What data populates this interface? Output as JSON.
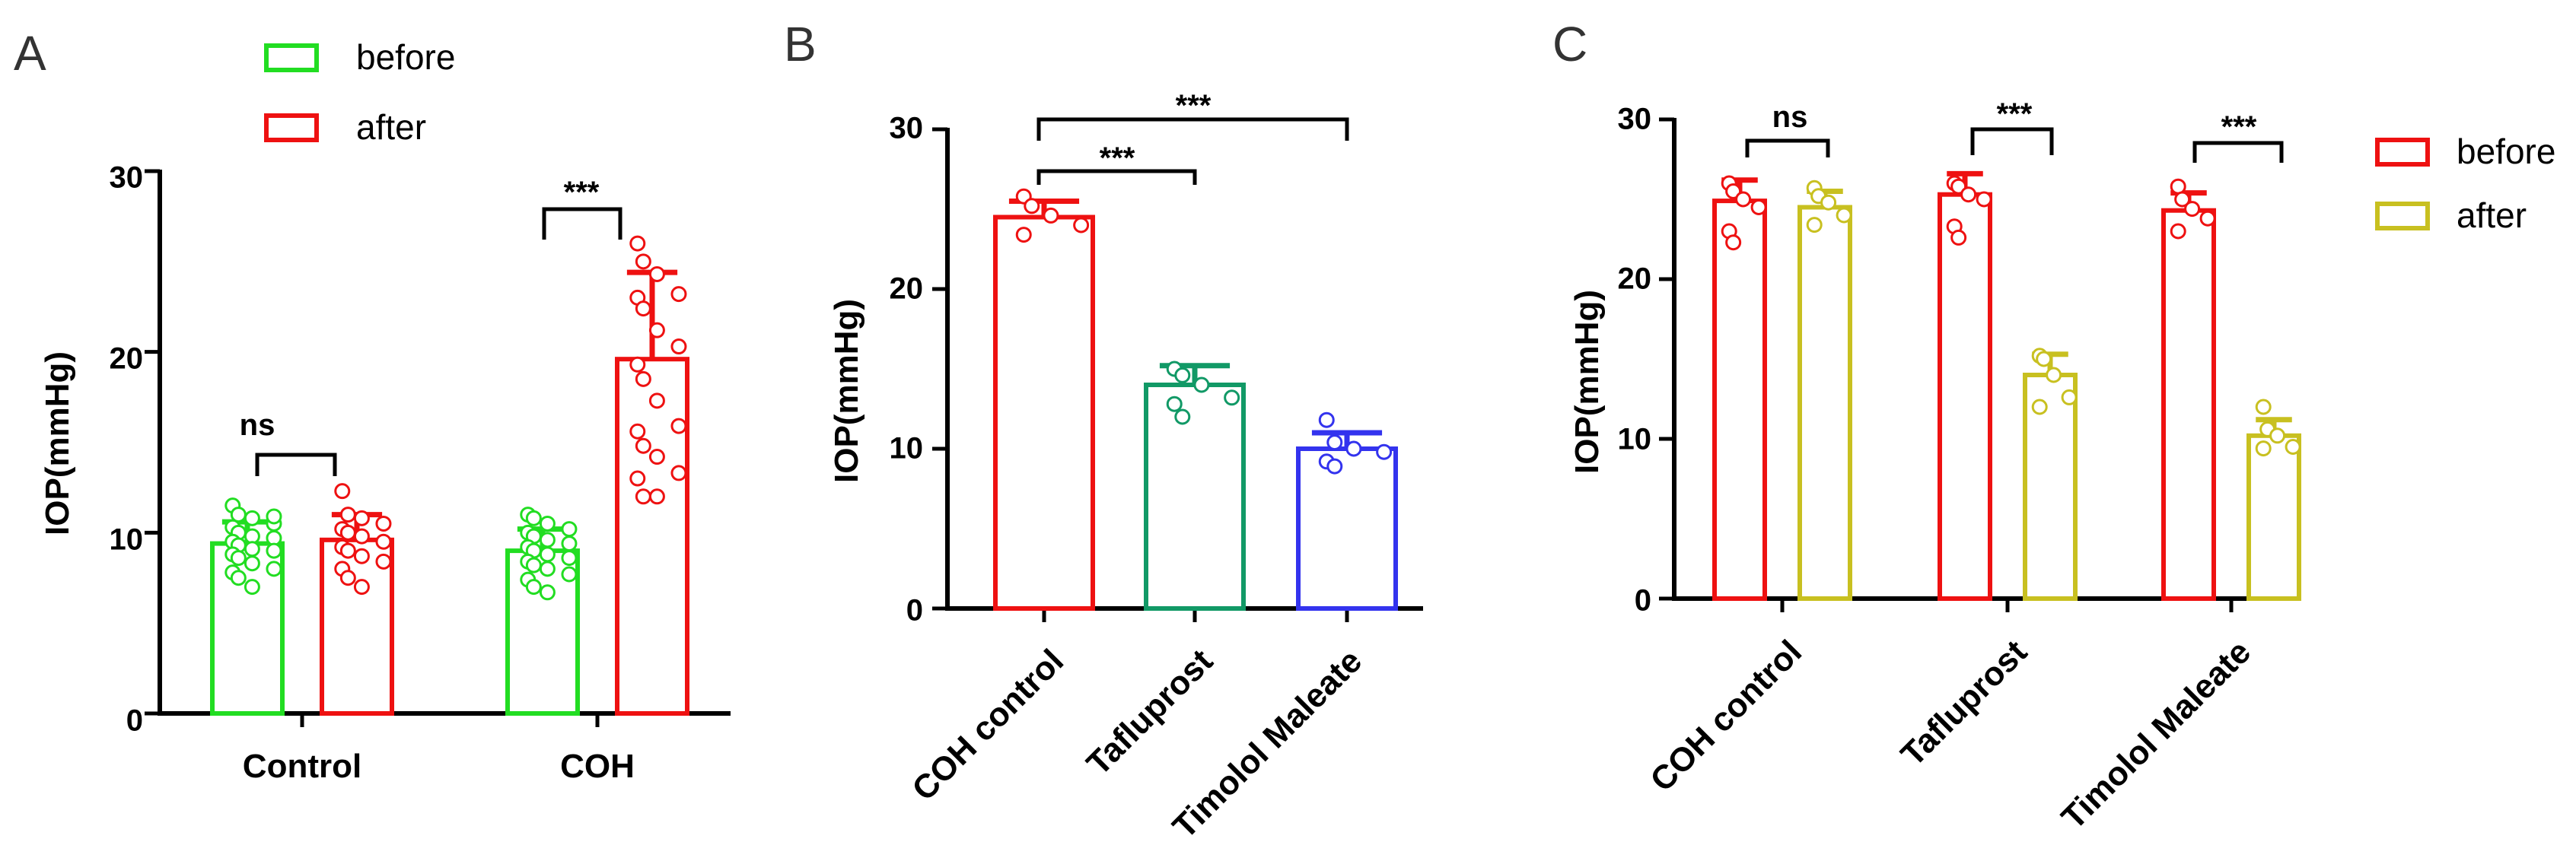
{
  "colors": {
    "green": "#22dd22",
    "red": "#ee1111",
    "teal": "#119966",
    "blue": "#3333ee",
    "olive": "#c8c020",
    "axis": "#000000"
  },
  "chart_data": [
    {
      "panel": "A",
      "type": "bar",
      "ylabel": "IOP(mmHg)",
      "ylim": [
        0,
        30
      ],
      "yticks": [
        "0",
        "10",
        "20",
        "30"
      ],
      "categories": [
        "Control",
        "COH"
      ],
      "legend": {
        "position": "top",
        "entries": [
          "before",
          "after"
        ]
      },
      "series": [
        {
          "name": "before",
          "values": [
            9.4,
            9.0
          ],
          "errors": [
            1.2,
            1.2
          ],
          "points": [
            [
              11.5,
              11.0,
              10.8,
              10.5,
              10.3,
              10.0,
              9.8,
              9.7,
              9.5,
              9.3,
              9.1,
              9.0,
              8.8,
              8.6,
              8.3,
              8.0,
              7.8,
              7.5,
              7.0,
              10.9
            ],
            [
              11.0,
              10.8,
              10.5,
              10.2,
              10.0,
              9.8,
              9.6,
              9.4,
              9.2,
              9.0,
              8.8,
              8.6,
              8.4,
              8.2,
              8.0,
              7.7,
              7.4,
              7.0,
              6.7
            ]
          ]
        },
        {
          "name": "after",
          "values": [
            9.6,
            19.6
          ],
          "errors": [
            1.4,
            4.8
          ],
          "points": [
            [
              12.3,
              11.0,
              10.8,
              10.5,
              10.2,
              10.0,
              9.8,
              9.5,
              9.2,
              9.0,
              8.7,
              8.4,
              8.0,
              7.5,
              7.0
            ],
            [
              26.0,
              25.0,
              24.3,
              23.2,
              23.0,
              22.4,
              21.2,
              20.3,
              19.3,
              18.5,
              17.3,
              15.9,
              15.6,
              14.8,
              14.2,
              13.3,
              13.0,
              12.0,
              12.0
            ]
          ]
        }
      ],
      "annotations": [
        {
          "label": "ns",
          "category": "Control"
        },
        {
          "label": "***",
          "category": "COH"
        }
      ]
    },
    {
      "panel": "B",
      "type": "bar",
      "ylabel": "IOP(mmHg)",
      "ylim": [
        0,
        30
      ],
      "yticks": [
        "0",
        "10",
        "20",
        "30"
      ],
      "categories": [
        "COH control",
        "Tafluprost",
        "Timolol Maleate"
      ],
      "values": [
        24.5,
        14.0,
        10.0
      ],
      "errors": [
        1.0,
        1.2,
        1.0
      ],
      "points": [
        [
          25.8,
          25.2,
          24.6,
          24.0,
          23.4
        ],
        [
          15.0,
          14.6,
          14.0,
          13.2,
          12.8,
          12.0
        ],
        [
          11.8,
          10.4,
          10.0,
          9.8,
          9.2,
          8.9
        ]
      ],
      "annotations": [
        {
          "label": "***",
          "from": "COH control",
          "to": "Tafluprost"
        },
        {
          "label": "***",
          "from": "COH control",
          "to": "Timolol Maleate"
        }
      ]
    },
    {
      "panel": "C",
      "type": "bar",
      "ylabel": "IOP(mmHg)",
      "ylim": [
        0,
        30
      ],
      "yticks": [
        "0",
        "10",
        "20",
        "30"
      ],
      "categories": [
        "COH control",
        "Tafluprost",
        "Timolol Maleate"
      ],
      "legend": {
        "position": "right",
        "entries": [
          "before",
          "after"
        ]
      },
      "series": [
        {
          "name": "before",
          "values": [
            24.9,
            25.3,
            24.3
          ],
          "errors": [
            1.3,
            1.3,
            1.1
          ],
          "points": [
            [
              26.0,
              25.5,
              25.0,
              24.5,
              23.0,
              22.3
            ],
            [
              26.0,
              25.8,
              25.3,
              25.0,
              23.3,
              22.6
            ],
            [
              25.8,
              25.0,
              24.4,
              23.8,
              23.0
            ]
          ]
        },
        {
          "name": "after",
          "values": [
            24.5,
            14.0,
            10.2
          ],
          "errors": [
            1.0,
            1.3,
            1.0
          ],
          "points": [
            [
              25.7,
              25.2,
              24.8,
              24.0,
              23.4
            ],
            [
              15.2,
              15.0,
              14.0,
              12.6,
              12.0
            ],
            [
              12.0,
              10.6,
              10.2,
              9.5,
              9.4
            ]
          ]
        }
      ],
      "annotations": [
        {
          "label": "ns",
          "category": "COH control"
        },
        {
          "label": "***",
          "category": "Tafluprost"
        },
        {
          "label": "***",
          "category": "Timolol Maleate"
        }
      ]
    }
  ]
}
